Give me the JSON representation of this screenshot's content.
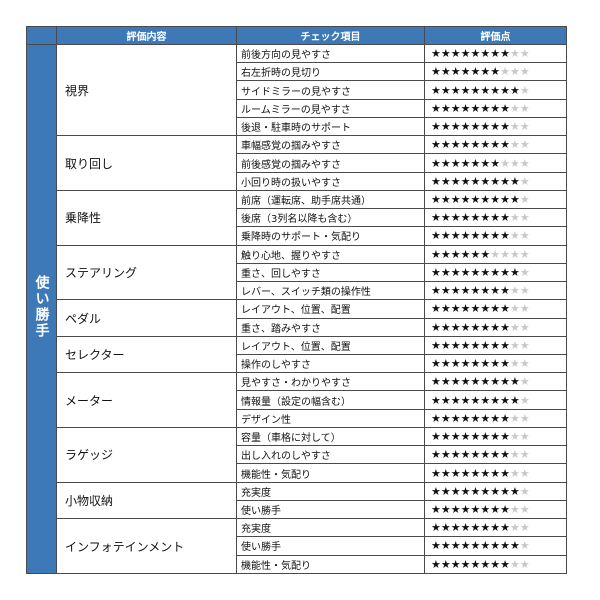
{
  "header": {
    "corner": "",
    "col_category": "評価内容",
    "col_item": "チェック項目",
    "col_rating": "評価点"
  },
  "section": "使い勝手",
  "max_stars": 10,
  "categories": [
    {
      "name": "視界",
      "items": [
        {
          "label": "前後方向の見やすさ",
          "stars": 8
        },
        {
          "label": "右左折時の見切り",
          "stars": 7
        },
        {
          "label": "サイドミラーの見やすさ",
          "stars": 9
        },
        {
          "label": "ルームミラーの見やすさ",
          "stars": 8
        },
        {
          "label": "後退・駐車時のサポート",
          "stars": 8
        }
      ]
    },
    {
      "name": "取り回し",
      "items": [
        {
          "label": "車幅感覚の掴みやすさ",
          "stars": 8
        },
        {
          "label": "前後感覚の掴みやすさ",
          "stars": 7
        },
        {
          "label": "小回り時の扱いやすさ",
          "stars": 9
        }
      ]
    },
    {
      "name": "乗降性",
      "items": [
        {
          "label": "前席（運転席、助手席共通）",
          "stars": 9
        },
        {
          "label": "後席（3列名以降も含む）",
          "stars": 8
        },
        {
          "label": "乗降時のサポート・気配り",
          "stars": 8
        }
      ]
    },
    {
      "name": "ステアリング",
      "items": [
        {
          "label": "触り心地、握りやすさ",
          "stars": 6
        },
        {
          "label": "重さ、回しやすさ",
          "stars": 9
        },
        {
          "label": "レバー、スイッチ類の操作性",
          "stars": 8
        }
      ]
    },
    {
      "name": "ペダル",
      "items": [
        {
          "label": "レイアウト、位置、配置",
          "stars": 8
        },
        {
          "label": "重さ、踏みやすさ",
          "stars": 8
        }
      ]
    },
    {
      "name": "セレクター",
      "items": [
        {
          "label": "レイアウト、位置、配置",
          "stars": 8
        },
        {
          "label": "操作のしやすさ",
          "stars": 8
        }
      ]
    },
    {
      "name": "メーター",
      "items": [
        {
          "label": "見やすさ・わかりやすさ",
          "stars": 9
        },
        {
          "label": "情報量（設定の幅含む）",
          "stars": 9
        },
        {
          "label": "デザイン性",
          "stars": 8
        }
      ]
    },
    {
      "name": "ラゲッジ",
      "items": [
        {
          "label": "容量（車格に対して）",
          "stars": 8
        },
        {
          "label": "出し入れのしやすさ",
          "stars": 8
        },
        {
          "label": "機能性・気配り",
          "stars": 8
        }
      ]
    },
    {
      "name": "小物収納",
      "items": [
        {
          "label": "充実度",
          "stars": 9
        },
        {
          "label": "使い勝手",
          "stars": 8
        }
      ]
    },
    {
      "name": "インフォテインメント",
      "items": [
        {
          "label": "充実度",
          "stars": 8
        },
        {
          "label": "使い勝手",
          "stars": 9
        },
        {
          "label": "機能性・気配り",
          "stars": 8
        }
      ]
    }
  ]
}
